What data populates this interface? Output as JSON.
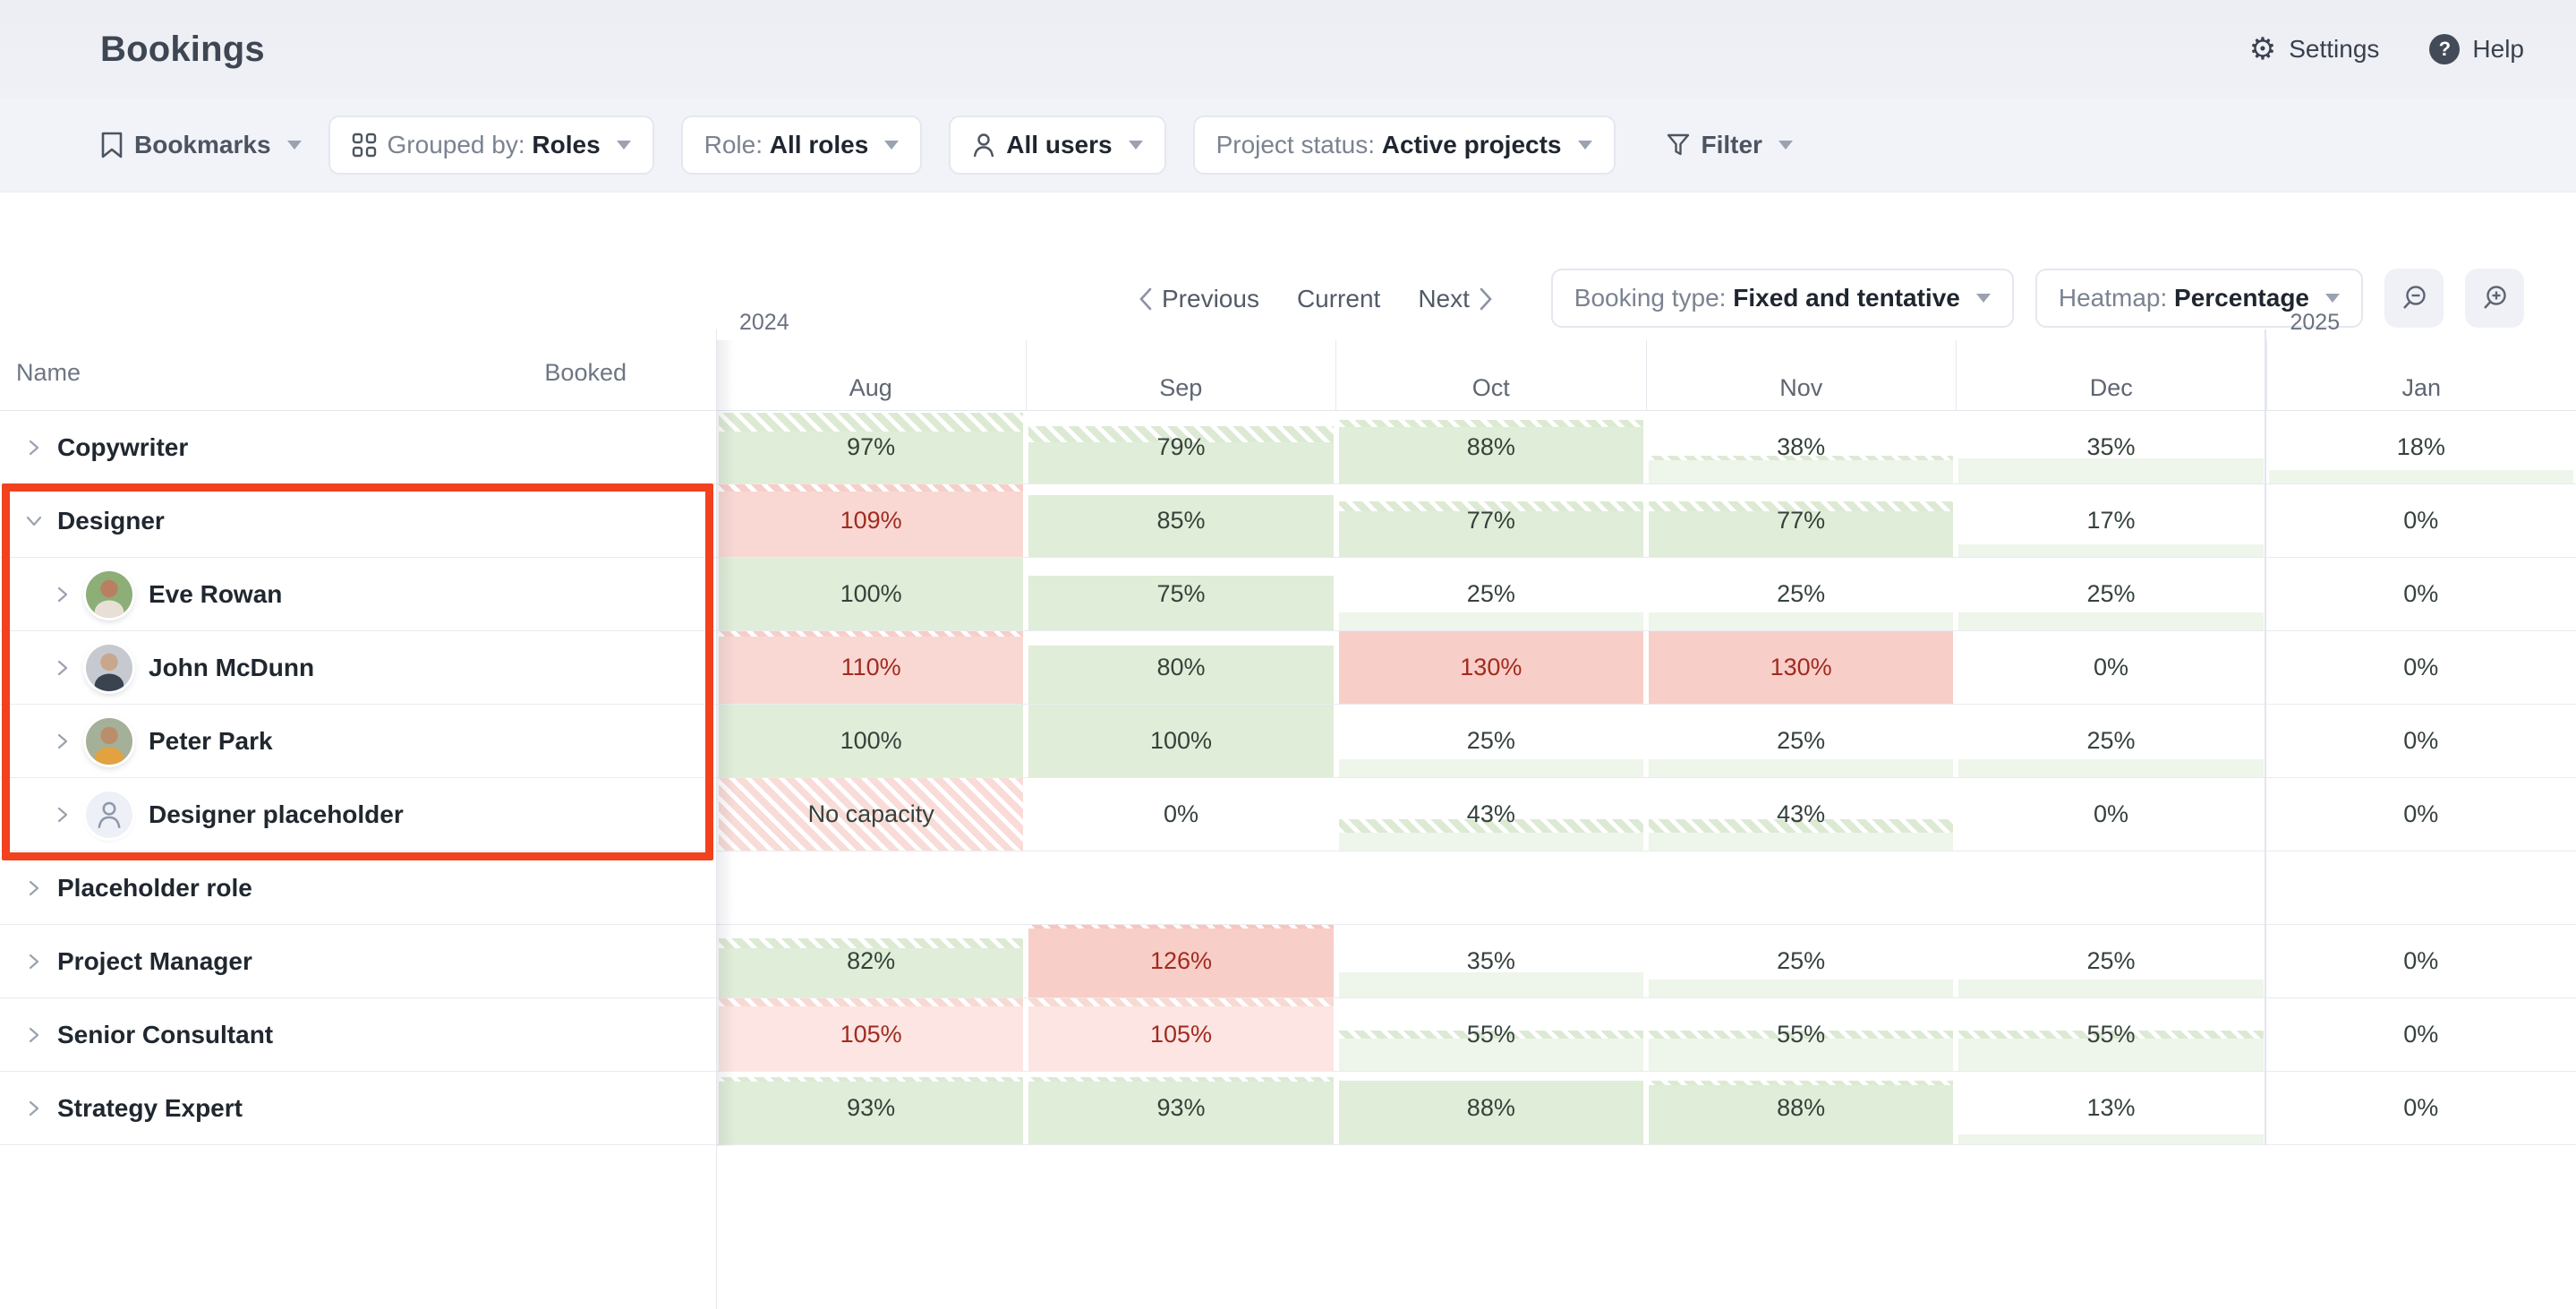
{
  "app": {
    "title": "Bookings",
    "settings_label": "Settings",
    "help_label": "Help"
  },
  "toolbar": {
    "bookmarks_label": "Bookmarks",
    "grouped_by_prefix": "Grouped by: ",
    "grouped_by_value": "Roles",
    "role_prefix": "Role: ",
    "role_value": "All roles",
    "users_value": "All users",
    "project_status_prefix": "Project status: ",
    "project_status_value": "Active projects",
    "filter_label": "Filter"
  },
  "controls": {
    "previous": "Previous",
    "current": "Current",
    "next": "Next",
    "booking_type_prefix": "Booking type: ",
    "booking_type_value": "Fixed and tentative",
    "heatmap_prefix": "Heatmap: ",
    "heatmap_value": "Percentage"
  },
  "table": {
    "name_header": "Name",
    "booked_header": "Booked",
    "year_left": "2024",
    "year_right": "2025",
    "months": [
      "Aug",
      "Sep",
      "Oct",
      "Nov",
      "Dec",
      "Jan"
    ],
    "rows": [
      {
        "kind": "role",
        "name": "Copywriter",
        "expanded": false,
        "cells": [
          {
            "label": "97%",
            "tone": "green",
            "fill": 97,
            "hatch": 26,
            "text": "dark"
          },
          {
            "label": "79%",
            "tone": "green",
            "fill": 79,
            "hatch": 22,
            "text": "dark"
          },
          {
            "label": "88%",
            "tone": "green",
            "fill": 88,
            "hatch": 10,
            "text": "dark"
          },
          {
            "label": "38%",
            "tone": "green-light",
            "fill": 38,
            "hatch": 6,
            "text": "dark"
          },
          {
            "label": "35%",
            "tone": "green-light",
            "fill": 35,
            "hatch": 0,
            "text": "dark"
          },
          {
            "label": "18%",
            "tone": "green-light",
            "fill": 18,
            "hatch": 0,
            "text": "dark"
          }
        ]
      },
      {
        "kind": "role",
        "name": "Designer",
        "expanded": true,
        "cells": [
          {
            "label": "109%",
            "tone": "red",
            "fill": 100,
            "hatch": 10,
            "text": "red"
          },
          {
            "label": "85%",
            "tone": "green",
            "fill": 85,
            "hatch": 0,
            "text": "dark"
          },
          {
            "label": "77%",
            "tone": "green",
            "fill": 77,
            "hatch": 14,
            "text": "dark"
          },
          {
            "label": "77%",
            "tone": "green",
            "fill": 77,
            "hatch": 14,
            "text": "dark"
          },
          {
            "label": "17%",
            "tone": "green-light",
            "fill": 17,
            "hatch": 0,
            "text": "dark"
          },
          {
            "label": "0%",
            "tone": "none",
            "fill": 0,
            "hatch": 0,
            "text": "dark"
          }
        ]
      },
      {
        "kind": "member",
        "name": "Eve Rowan",
        "avatar": "eve",
        "cells": [
          {
            "label": "100%",
            "tone": "green",
            "fill": 100,
            "hatch": 0,
            "text": "dark"
          },
          {
            "label": "75%",
            "tone": "green",
            "fill": 75,
            "hatch": 0,
            "text": "dark"
          },
          {
            "label": "25%",
            "tone": "green-light",
            "fill": 25,
            "hatch": 0,
            "text": "dark"
          },
          {
            "label": "25%",
            "tone": "green-light",
            "fill": 25,
            "hatch": 0,
            "text": "dark"
          },
          {
            "label": "25%",
            "tone": "green-light",
            "fill": 25,
            "hatch": 0,
            "text": "dark"
          },
          {
            "label": "0%",
            "tone": "none",
            "fill": 0,
            "hatch": 0,
            "text": "dark"
          }
        ]
      },
      {
        "kind": "member",
        "name": "John McDunn",
        "avatar": "john",
        "cells": [
          {
            "label": "110%",
            "tone": "red",
            "fill": 100,
            "hatch": 8,
            "text": "red"
          },
          {
            "label": "80%",
            "tone": "green",
            "fill": 80,
            "hatch": 0,
            "text": "dark"
          },
          {
            "label": "130%",
            "tone": "red-strong",
            "fill": 100,
            "hatch": 0,
            "text": "red"
          },
          {
            "label": "130%",
            "tone": "red-strong",
            "fill": 100,
            "hatch": 0,
            "text": "red"
          },
          {
            "label": "0%",
            "tone": "none",
            "fill": 0,
            "hatch": 0,
            "text": "dark"
          },
          {
            "label": "0%",
            "tone": "none",
            "fill": 0,
            "hatch": 0,
            "text": "dark"
          }
        ]
      },
      {
        "kind": "member",
        "name": "Peter Park",
        "avatar": "peter",
        "cells": [
          {
            "label": "100%",
            "tone": "green",
            "fill": 100,
            "hatch": 0,
            "text": "dark"
          },
          {
            "label": "100%",
            "tone": "green",
            "fill": 100,
            "hatch": 0,
            "text": "dark"
          },
          {
            "label": "25%",
            "tone": "green-light",
            "fill": 25,
            "hatch": 0,
            "text": "dark"
          },
          {
            "label": "25%",
            "tone": "green-light",
            "fill": 25,
            "hatch": 0,
            "text": "dark"
          },
          {
            "label": "25%",
            "tone": "green-light",
            "fill": 25,
            "hatch": 0,
            "text": "dark"
          },
          {
            "label": "0%",
            "tone": "none",
            "fill": 0,
            "hatch": 0,
            "text": "dark"
          }
        ]
      },
      {
        "kind": "member",
        "name": "Designer placeholder",
        "avatar": "placeholder",
        "cells": [
          {
            "label": "No capacity",
            "tone": "no-capacity",
            "fill": 100,
            "hatch": 0,
            "text": "dark"
          },
          {
            "label": "0%",
            "tone": "none",
            "fill": 0,
            "hatch": 0,
            "text": "dark"
          },
          {
            "label": "43%",
            "tone": "green-light",
            "fill": 43,
            "hatch": 18,
            "text": "dark"
          },
          {
            "label": "43%",
            "tone": "green-light",
            "fill": 43,
            "hatch": 18,
            "text": "dark"
          },
          {
            "label": "0%",
            "tone": "none",
            "fill": 0,
            "hatch": 0,
            "text": "dark"
          },
          {
            "label": "0%",
            "tone": "none",
            "fill": 0,
            "hatch": 0,
            "text": "dark"
          }
        ]
      },
      {
        "kind": "role",
        "name": "Placeholder role",
        "expanded": false,
        "cells": [
          {
            "label": "",
            "tone": "empty",
            "fill": 0,
            "hatch": 0,
            "text": "dark"
          },
          {
            "label": "",
            "tone": "empty",
            "fill": 0,
            "hatch": 0,
            "text": "dark"
          },
          {
            "label": "",
            "tone": "empty",
            "fill": 0,
            "hatch": 0,
            "text": "dark"
          },
          {
            "label": "",
            "tone": "empty",
            "fill": 0,
            "hatch": 0,
            "text": "dark"
          },
          {
            "label": "",
            "tone": "empty",
            "fill": 0,
            "hatch": 0,
            "text": "dark"
          },
          {
            "label": "",
            "tone": "empty",
            "fill": 0,
            "hatch": 0,
            "text": "dark"
          }
        ]
      },
      {
        "kind": "role",
        "name": "Project Manager",
        "expanded": false,
        "cells": [
          {
            "label": "82%",
            "tone": "green",
            "fill": 82,
            "hatch": 13,
            "text": "dark"
          },
          {
            "label": "126%",
            "tone": "red-strong",
            "fill": 100,
            "hatch": 5,
            "text": "red"
          },
          {
            "label": "35%",
            "tone": "green-light",
            "fill": 35,
            "hatch": 0,
            "text": "dark"
          },
          {
            "label": "25%",
            "tone": "green-light",
            "fill": 25,
            "hatch": 0,
            "text": "dark"
          },
          {
            "label": "25%",
            "tone": "green-light",
            "fill": 25,
            "hatch": 0,
            "text": "dark"
          },
          {
            "label": "0%",
            "tone": "none",
            "fill": 0,
            "hatch": 0,
            "text": "dark"
          }
        ]
      },
      {
        "kind": "role",
        "name": "Senior Consultant",
        "expanded": false,
        "cells": [
          {
            "label": "105%",
            "tone": "red-light",
            "fill": 100,
            "hatch": 11,
            "text": "red"
          },
          {
            "label": "105%",
            "tone": "red-light",
            "fill": 100,
            "hatch": 11,
            "text": "red"
          },
          {
            "label": "55%",
            "tone": "green-light",
            "fill": 55,
            "hatch": 11,
            "text": "dark"
          },
          {
            "label": "55%",
            "tone": "green-light",
            "fill": 55,
            "hatch": 11,
            "text": "dark"
          },
          {
            "label": "55%",
            "tone": "green-light",
            "fill": 55,
            "hatch": 11,
            "text": "dark"
          },
          {
            "label": "0%",
            "tone": "none",
            "fill": 0,
            "hatch": 0,
            "text": "dark"
          }
        ]
      },
      {
        "kind": "role",
        "name": "Strategy Expert",
        "expanded": false,
        "cells": [
          {
            "label": "93%",
            "tone": "green",
            "fill": 93,
            "hatch": 6,
            "text": "dark"
          },
          {
            "label": "93%",
            "tone": "green",
            "fill": 93,
            "hatch": 6,
            "text": "dark"
          },
          {
            "label": "88%",
            "tone": "green",
            "fill": 88,
            "hatch": 0,
            "text": "dark"
          },
          {
            "label": "88%",
            "tone": "green",
            "fill": 88,
            "hatch": 6,
            "text": "dark"
          },
          {
            "label": "13%",
            "tone": "green-light",
            "fill": 13,
            "hatch": 0,
            "text": "dark"
          },
          {
            "label": "0%",
            "tone": "none",
            "fill": 0,
            "hatch": 0,
            "text": "dark"
          }
        ]
      }
    ]
  },
  "colors": {
    "green": "#e0edd8",
    "green_light": "#eef5ea",
    "green_band": "#dcead3",
    "red": "#f9d8d3",
    "red_light": "#fce5e2",
    "red_strong": "#f8cec8",
    "no_capacity": "#f9dbd7",
    "text_dark": "#35423b",
    "text_red": "#a12b20",
    "annotation": "#f2411f"
  }
}
